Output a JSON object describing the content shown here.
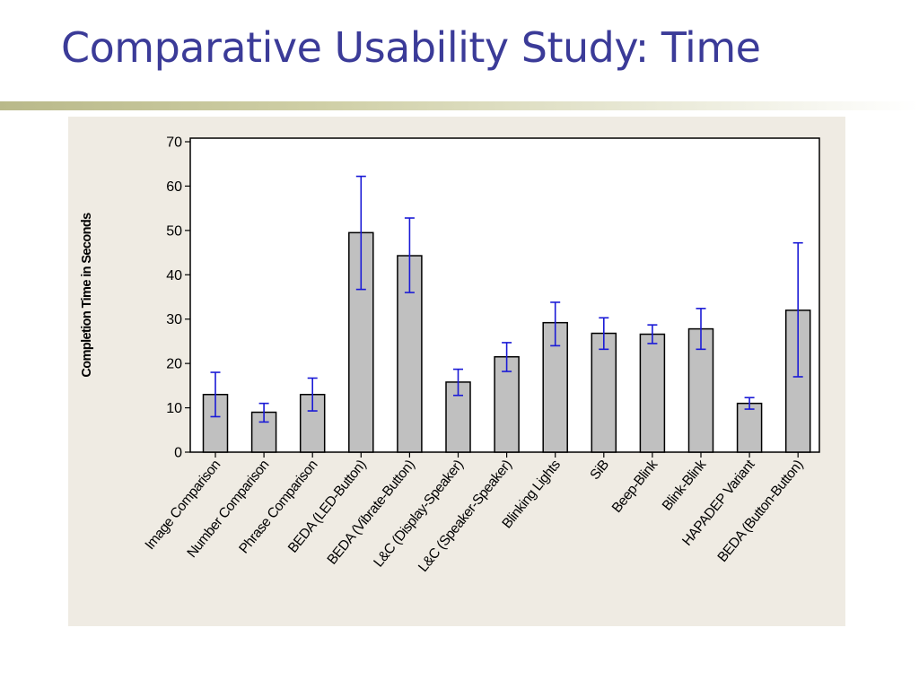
{
  "title": "Comparative Usability Study: Time",
  "colors": {
    "title": "#3b3b98",
    "panel_background": "#efebe3",
    "bar_fill": "#c0c0c0",
    "bar_stroke": "#000000",
    "error_bar": "#1a1ad6"
  },
  "chart_data": {
    "type": "bar",
    "title": "",
    "xlabel": "",
    "ylabel": "Completion Time in Seconds",
    "ylim": [
      0,
      70
    ],
    "yticks": [
      0,
      10,
      20,
      30,
      40,
      50,
      60,
      70
    ],
    "grid": false,
    "legend": "none",
    "categories": [
      "Image Comparison",
      "Number Comparison",
      "Phrase Comparison",
      "BEDA (LED-Button)",
      "BEDA (Vibrate-Button)",
      "L&C (Display-Speaker)",
      "L&C (Speaker-Speaker)",
      "Blinking Lights",
      "SiB",
      "Beep-Blink",
      "Blink-Blink",
      "HAPADEP Variant",
      "BEDA (Button-Button)"
    ],
    "values": [
      13,
      9,
      13,
      49.5,
      44.3,
      15.8,
      21.5,
      29.2,
      26.8,
      26.6,
      27.8,
      11,
      32
    ],
    "error_low": [
      8,
      6.8,
      9.3,
      36.7,
      36,
      12.8,
      18.2,
      24,
      23.2,
      24.5,
      23.2,
      9.7,
      17
    ],
    "error_high": [
      18,
      11,
      16.7,
      62.2,
      52.8,
      18.7,
      24.7,
      33.8,
      30.3,
      28.7,
      32.4,
      12.3,
      47.2
    ]
  }
}
